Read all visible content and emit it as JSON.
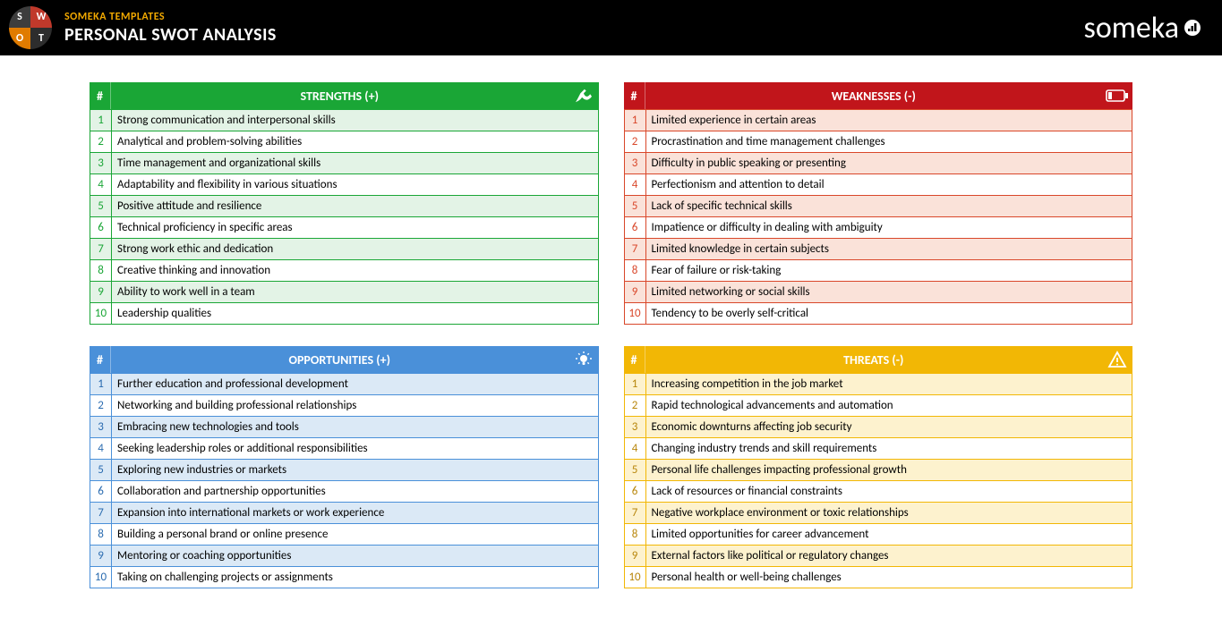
{
  "header": {
    "subtitle": "SOMEKA TEMPLATES",
    "title": "PERSONAL SWOT ANALYSIS",
    "brand": "someka"
  },
  "quadrants": [
    {
      "key": "strengths",
      "label": "STRENGTHS (+)",
      "header_bg": "#1aa636",
      "border_color": "#1aa636",
      "num_color": "#1aa636",
      "row_bg_even": "#ffffff",
      "row_bg_odd": "#e3f3e6",
      "icon": "flex",
      "items": [
        "Strong communication and interpersonal skills",
        "Analytical and problem-solving abilities",
        "Time management and organizational skills",
        "Adaptability and flexibility in various situations",
        "Positive attitude and resilience",
        "Technical proficiency in specific areas",
        "Strong work ethic and dedication",
        "Creative thinking and innovation",
        "Ability to work well in a team",
        "Leadership qualities"
      ]
    },
    {
      "key": "weaknesses",
      "label": "WEAKNESSES (-)",
      "header_bg": "#c1151b",
      "border_color": "#d9472a",
      "num_color": "#d9472a",
      "row_bg_even": "#ffffff",
      "row_bg_odd": "#fae2d9",
      "icon": "battery",
      "items": [
        "Limited experience in certain areas",
        "Procrastination and time management challenges",
        "Difficulty in public speaking or presenting",
        "Perfectionism and attention to detail",
        "Lack of specific technical skills",
        "Impatience or difficulty in dealing with ambiguity",
        "Limited knowledge in certain subjects",
        "Fear of failure or risk-taking",
        "Limited networking or social skills",
        "Tendency to be overly self-critical"
      ]
    },
    {
      "key": "opportunities",
      "label": "OPPORTUNITIES (+)",
      "header_bg": "#4a90d9",
      "border_color": "#4a90d9",
      "num_color": "#2b6cb0",
      "row_bg_even": "#ffffff",
      "row_bg_odd": "#dbe9f6",
      "icon": "bulb",
      "items": [
        "Further education and professional development",
        "Networking and building professional relationships",
        "Embracing new technologies and tools",
        "Seeking leadership roles or additional responsibilities",
        "Exploring new industries or markets",
        "Collaboration and partnership opportunities",
        "Expansion into international markets or work experience",
        "Building a personal brand or online presence",
        "Mentoring or coaching opportunities",
        "Taking on challenging projects or assignments"
      ]
    },
    {
      "key": "threats",
      "label": "THREATS (-)",
      "header_bg": "#f2b705",
      "border_color": "#f2b705",
      "num_color": "#b8860b",
      "row_bg_even": "#ffffff",
      "row_bg_odd": "#fdf2ce",
      "icon": "warn",
      "items": [
        "Increasing competition in the job market",
        "Rapid technological advancements and automation",
        "Economic downturns affecting job security",
        "Changing industry trends and skill requirements",
        "Personal life challenges impacting professional growth",
        "Lack of resources or financial constraints",
        "Negative workplace environment or toxic relationships",
        "Limited opportunities for career advancement",
        "External factors like political or regulatory changes",
        "Personal health or well-being challenges"
      ]
    }
  ]
}
